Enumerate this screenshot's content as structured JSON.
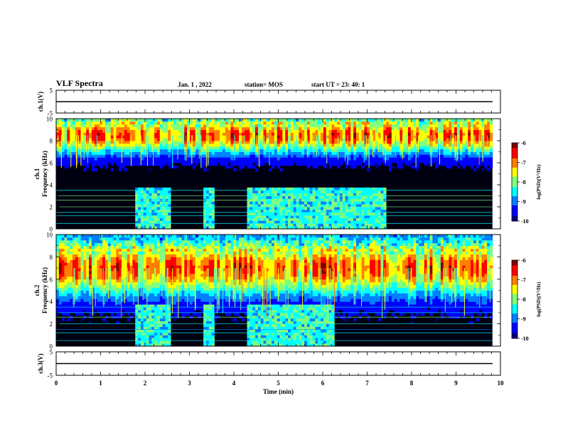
{
  "header": {
    "title": "VLF Spectra",
    "date": "Jan. 1 , 2022",
    "station": "station= MOS",
    "start": "start UT =  23: 40: 1"
  },
  "colors": {
    "scale": [
      "#00007f",
      "#0000ff",
      "#0080ff",
      "#00ffff",
      "#80ff80",
      "#ffff00",
      "#ff8000",
      "#ff0000",
      "#7f0000"
    ],
    "background": "#000010",
    "line": "#000000"
  },
  "chart_data": [
    {
      "type": "line",
      "ylabel": "ch.1(V)",
      "ylim": [
        -5,
        5
      ],
      "yticks": [
        "5",
        "-5"
      ],
      "x": [
        0,
        9.82
      ],
      "values": [
        0,
        0
      ]
    },
    {
      "type": "heatmap",
      "ylabel": "ch.1\nFrequency (kHz)",
      "ylim": [
        0,
        10
      ],
      "yticks": [
        "0",
        "2",
        "4",
        "6",
        "8",
        "10"
      ],
      "xlim": [
        0,
        10
      ],
      "data_end_min": 9.82,
      "colorbar": {
        "label": "log(PSD)(V²/Hz)",
        "range": [
          -10,
          -6
        ],
        "ticks": [
          "-6",
          "-7",
          "-8",
          "-9",
          "-10"
        ]
      },
      "events": [
        {
          "t_start": 1.75,
          "t_end": 2.6,
          "kind": "enhanced low band"
        },
        {
          "t_start": 3.3,
          "t_end": 3.55,
          "kind": "enhanced low band"
        },
        {
          "t_start": 4.3,
          "t_end": 6.25,
          "kind": "enhanced low band"
        },
        {
          "t_start": 5.7,
          "t_end": 7.4,
          "kind": "broadband 0-3.8 kHz"
        }
      ],
      "dominant_band_khz": [
        7.5,
        9.5
      ]
    },
    {
      "type": "heatmap",
      "ylabel": "ch.2\nFrequency (kHz)",
      "ylim": [
        0,
        10
      ],
      "yticks": [
        "0",
        "2",
        "4",
        "6",
        "8",
        "10"
      ],
      "xlim": [
        0,
        10
      ],
      "data_end_min": 9.82,
      "colorbar": {
        "label": "log(PSD)(V²/Hz)",
        "range": [
          -10,
          -6
        ],
        "ticks": [
          "-6",
          "-7",
          "-8",
          "-9",
          "-10"
        ]
      },
      "events": [
        {
          "t_start": 1.75,
          "t_end": 2.6,
          "kind": "enhanced low band"
        },
        {
          "t_start": 3.3,
          "t_end": 3.55,
          "kind": "enhanced low band"
        },
        {
          "t_start": 4.3,
          "t_end": 6.25,
          "kind": "enhanced low band"
        }
      ],
      "dominant_band_khz": [
        5.5,
        8.5
      ]
    },
    {
      "type": "line",
      "ylabel": "ch.3(V)",
      "ylim": [
        -5,
        5
      ],
      "yticks": [
        "5",
        "-5"
      ],
      "x": [
        0,
        9.82
      ],
      "values": [
        0,
        0
      ]
    }
  ],
  "xaxis": {
    "label": "Time (min)",
    "range": [
      0,
      10
    ],
    "ticks": [
      "0",
      "1",
      "2",
      "3",
      "4",
      "5",
      "6",
      "7",
      "8",
      "9",
      "10"
    ]
  }
}
